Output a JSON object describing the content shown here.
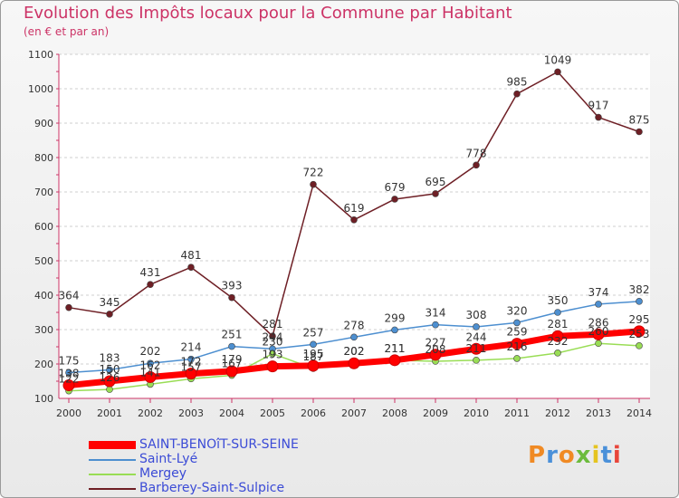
{
  "header": {
    "title": "Evolution des Impôts locaux pour la Commune par Habitant",
    "subtitle": "(en € et par an)"
  },
  "logo": {
    "text": "Proxiti"
  },
  "chart_data": {
    "type": "line",
    "title": "Evolution des Impôts locaux pour la Commune par Habitant",
    "subtitle": "(en € et par an)",
    "xlabel": "",
    "ylabel": "",
    "ylim": [
      100,
      1100
    ],
    "yticks": [
      100,
      200,
      300,
      400,
      500,
      600,
      700,
      800,
      900,
      1000,
      1100
    ],
    "grid": "horizontal dashed",
    "legend_position": "bottom-left",
    "categories": [
      "2000",
      "2001",
      "2002",
      "2003",
      "2004",
      "2005",
      "2006",
      "2007",
      "2008",
      "2009",
      "2010",
      "2011",
      "2012",
      "2013",
      "2014"
    ],
    "series": [
      {
        "name": "SAINT-BENOîT-SUR-SEINE",
        "color": "#ff0000",
        "values": [
          138,
          150,
          162,
          172,
          179,
          193,
          195,
          202,
          211,
          227,
          244,
          259,
          281,
          286,
          295
        ],
        "labels": [
          "138",
          "150",
          "162",
          "172",
          "179",
          "193",
          "195",
          "202",
          "211",
          "227",
          "244",
          "259",
          "281",
          "286",
          "295"
        ]
      },
      {
        "name": "Saint-Lyé",
        "color": "#4d8fd0",
        "values": [
          175,
          183,
          202,
          214,
          251,
          244,
          257,
          278,
          299,
          314,
          308,
          320,
          350,
          374,
          382
        ],
        "labels": [
          "175",
          "183",
          "202",
          "214",
          "251",
          "244",
          "257",
          "278",
          "299",
          "314",
          "308",
          "320",
          "350",
          "374",
          "382"
        ]
      },
      {
        "name": "Mergey",
        "color": "#99dd55",
        "values": [
          122,
          126,
          141,
          157,
          167,
          230,
          187,
          202,
          211,
          208,
          211,
          216,
          232,
          260,
          253
        ],
        "labels": [
          "122",
          "126",
          "141",
          "157",
          "167",
          "230",
          "187",
          "202",
          "211",
          "208",
          "211",
          "216",
          "232",
          "260",
          "253"
        ]
      },
      {
        "name": "Barberey-Saint-Sulpice",
        "color": "#6e1f25",
        "values": [
          364,
          345,
          431,
          481,
          393,
          281,
          722,
          619,
          679,
          695,
          778,
          985,
          1049,
          917,
          875
        ],
        "labels": [
          "364",
          "345",
          "431",
          "481",
          "393",
          "281",
          "722",
          "619",
          "679",
          "695",
          "778",
          "985",
          "1049",
          "917",
          "875"
        ]
      }
    ]
  }
}
